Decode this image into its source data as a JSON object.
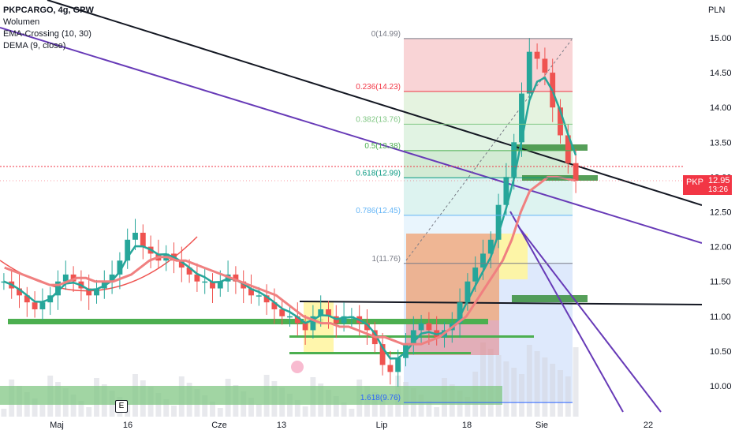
{
  "header": {
    "title": "PKPCARGO, 4g, GPW",
    "indicators": [
      "Wolumen",
      "EMA-Crossing (10, 30)",
      "DEMA (9, close)"
    ]
  },
  "currency_label": "PLN",
  "price_tag": {
    "symbol": "PKP",
    "price": "12.95",
    "countdown": "13:26"
  },
  "event_marker": "E",
  "chart_data": {
    "type": "line",
    "title": "PKPCARGO, 4g, GPW",
    "ylabel": "PLN",
    "ylim": [
      9.6,
      15.3
    ],
    "y_ticks": [
      "15.00",
      "14.50",
      "14.00",
      "13.50",
      "13.00",
      "12.50",
      "12.00",
      "11.50",
      "11.00",
      "10.50",
      "10.00"
    ],
    "x_ticks": [
      "Maj",
      "16",
      "Cze",
      "13",
      "Lip",
      "18",
      "Sie",
      "22"
    ],
    "last_price": 12.95,
    "colors": {
      "up": "#26a69a",
      "down": "#ef5350",
      "ema_fast": "#26a69a",
      "ema_slow": "#f08080"
    },
    "fibonacci": [
      {
        "label": "0(14.99)",
        "value": 14.99,
        "color": "#787b86"
      },
      {
        "label": "0.236(14.23)",
        "value": 14.23,
        "color": "#f23645"
      },
      {
        "label": "0.382(13.76)",
        "value": 13.76,
        "color": "#81c784"
      },
      {
        "label": "0.5(13.38)",
        "value": 13.38,
        "color": "#4caf50"
      },
      {
        "label": "0.618(12.99)",
        "value": 12.99,
        "color": "#089981"
      },
      {
        "label": "0.786(12.45)",
        "value": 12.45,
        "color": "#64b5f6"
      },
      {
        "label": "1(11.76)",
        "value": 11.76,
        "color": "#787b86"
      },
      {
        "label": "1.618(9.76)",
        "value": 9.76,
        "color": "#2962ff"
      }
    ],
    "series": [
      {
        "values": [
          11.5,
          11.4,
          11.3,
          11.2,
          11.1,
          11.2,
          11.3,
          11.5,
          11.6,
          11.5,
          11.4,
          11.3,
          11.4,
          11.5,
          11.6,
          11.8,
          12.1,
          12.2,
          12.0,
          11.9,
          11.8,
          11.9,
          11.8,
          11.7,
          11.6,
          11.5,
          11.5,
          11.4,
          11.5,
          11.6,
          11.5,
          11.4,
          11.3,
          11.3,
          11.2,
          11.1,
          11.0,
          11.0,
          10.9,
          10.8,
          11.0,
          11.1,
          11.0,
          10.9,
          11.0,
          11.0,
          10.9,
          10.8,
          10.6,
          10.3,
          10.2,
          10.4,
          10.6,
          10.8,
          10.9,
          10.8,
          10.7,
          10.8,
          10.9,
          11.2,
          11.5,
          11.7,
          11.9,
          12.1,
          12.6,
          13.0,
          13.5,
          14.2,
          14.8,
          14.7,
          14.5,
          14.0,
          13.6,
          13.2,
          12.95
        ]
      },
      {
        "values": [
          11.7,
          11.65,
          11.6,
          11.55,
          11.5,
          11.45,
          11.45,
          11.5,
          11.55,
          11.55,
          11.5,
          11.5,
          11.5,
          11.55,
          11.6,
          11.7,
          11.8,
          11.85,
          11.85,
          11.8,
          11.8,
          11.75,
          11.7,
          11.65,
          11.6,
          11.55,
          11.5,
          11.45,
          11.4,
          11.35,
          11.3,
          11.2,
          11.1,
          11.0,
          10.95,
          10.9,
          10.9,
          10.85,
          10.85,
          10.8,
          10.75,
          10.7,
          10.7,
          10.65,
          10.6,
          10.6,
          10.6,
          10.65,
          10.7,
          10.8,
          10.9,
          11.0,
          11.2,
          11.4,
          11.6,
          11.8,
          12.1,
          12.5,
          12.8,
          12.9,
          13.0,
          13.0,
          12.98,
          12.95
        ]
      }
    ]
  }
}
